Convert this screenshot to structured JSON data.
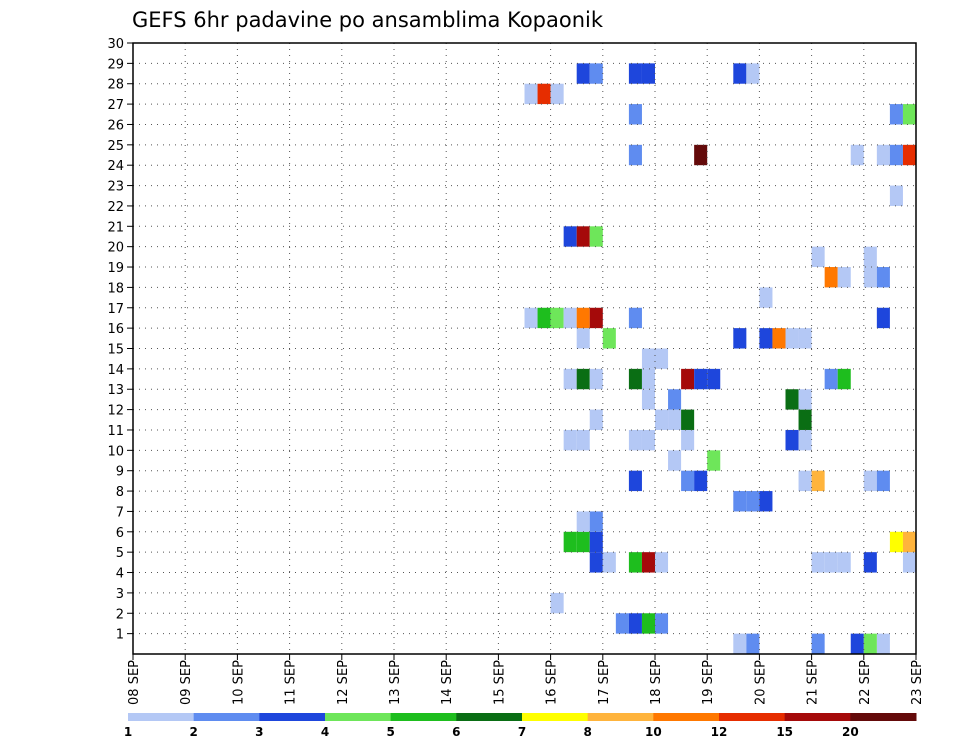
{
  "chart_data": {
    "type": "heatmap",
    "title": "GEFS 6hr padavine po ansamblima Kopaonik",
    "xlabel": "",
    "ylabel": "",
    "x_range": [
      0,
      60
    ],
    "y_range": [
      0,
      30
    ],
    "y_ticks": [
      1,
      2,
      3,
      4,
      5,
      6,
      7,
      8,
      9,
      10,
      11,
      12,
      13,
      14,
      15,
      16,
      17,
      18,
      19,
      20,
      21,
      22,
      23,
      24,
      25,
      26,
      27,
      28,
      29,
      30
    ],
    "x_tick_labels": [
      "08 SEP",
      "09 SEP",
      "10 SEP",
      "11 SEP",
      "12 SEP",
      "13 SEP",
      "14 SEP",
      "15 SEP",
      "16 SEP",
      "17 SEP",
      "18 SEP",
      "19 SEP",
      "20 SEP",
      "21 SEP",
      "22 SEP",
      "23 SEP"
    ],
    "grid": true,
    "colorbar": {
      "labels": [
        "1",
        "2",
        "3",
        "4",
        "5",
        "6",
        "7",
        "8",
        "10",
        "12",
        "15",
        "20"
      ],
      "colors": [
        "#b4c8f5",
        "#5f8cf0",
        "#1e46dc",
        "#6ee65a",
        "#1ebe1e",
        "#0a6e14",
        "#ffff00",
        "#ffb43c",
        "#ff7800",
        "#e62d00",
        "#a50a0a",
        "#640a0a"
      ]
    },
    "cells": [
      {
        "t": 52,
        "m": 0,
        "v": 2
      },
      {
        "t": 57,
        "m": 0,
        "v": 1
      },
      {
        "t": 46,
        "m": 0,
        "v": 1
      },
      {
        "t": 47,
        "m": 0,
        "v": 2
      },
      {
        "t": 55,
        "m": 0,
        "v": 3
      },
      {
        "t": 56,
        "m": 0,
        "v": 4
      },
      {
        "t": 37,
        "m": 1,
        "v": 2
      },
      {
        "t": 38,
        "m": 1,
        "v": 3
      },
      {
        "t": 39,
        "m": 1,
        "v": 5
      },
      {
        "t": 40,
        "m": 1,
        "v": 2
      },
      {
        "t": 32,
        "m": 2,
        "v": 1
      },
      {
        "t": 35,
        "m": 4,
        "v": 3
      },
      {
        "t": 36,
        "m": 4,
        "v": 1
      },
      {
        "t": 38,
        "m": 4,
        "v": 5
      },
      {
        "t": 39,
        "m": 4,
        "v": 15
      },
      {
        "t": 40,
        "m": 4,
        "v": 1
      },
      {
        "t": 52,
        "m": 4,
        "v": 1
      },
      {
        "t": 53,
        "m": 4,
        "v": 1
      },
      {
        "t": 54,
        "m": 4,
        "v": 1
      },
      {
        "t": 56,
        "m": 4,
        "v": 3
      },
      {
        "t": 59,
        "m": 4,
        "v": 1
      },
      {
        "t": 33,
        "m": 5,
        "v": 5
      },
      {
        "t": 34,
        "m": 5,
        "v": 5
      },
      {
        "t": 35,
        "m": 5,
        "v": 3
      },
      {
        "t": 58,
        "m": 5,
        "v": 7
      },
      {
        "t": 59,
        "m": 5,
        "v": 8
      },
      {
        "t": 34,
        "m": 6,
        "v": 1
      },
      {
        "t": 35,
        "m": 6,
        "v": 2
      },
      {
        "t": 46,
        "m": 7,
        "v": 2
      },
      {
        "t": 47,
        "m": 7,
        "v": 2
      },
      {
        "t": 48,
        "m": 7,
        "v": 3
      },
      {
        "t": 38,
        "m": 8,
        "v": 3
      },
      {
        "t": 42,
        "m": 8,
        "v": 2
      },
      {
        "t": 43,
        "m": 8,
        "v": 3
      },
      {
        "t": 51,
        "m": 8,
        "v": 1
      },
      {
        "t": 52,
        "m": 8,
        "v": 8
      },
      {
        "t": 56,
        "m": 8,
        "v": 1
      },
      {
        "t": 57,
        "m": 8,
        "v": 2
      },
      {
        "t": 41,
        "m": 9,
        "v": 1
      },
      {
        "t": 44,
        "m": 9,
        "v": 4
      },
      {
        "t": 33,
        "m": 10,
        "v": 1
      },
      {
        "t": 34,
        "m": 10,
        "v": 1
      },
      {
        "t": 38,
        "m": 10,
        "v": 1
      },
      {
        "t": 39,
        "m": 10,
        "v": 1
      },
      {
        "t": 42,
        "m": 10,
        "v": 1
      },
      {
        "t": 50,
        "m": 10,
        "v": 3
      },
      {
        "t": 51,
        "m": 10,
        "v": 1
      },
      {
        "t": 35,
        "m": 11,
        "v": 1
      },
      {
        "t": 40,
        "m": 11,
        "v": 1
      },
      {
        "t": 41,
        "m": 11,
        "v": 1
      },
      {
        "t": 42,
        "m": 11,
        "v": 6
      },
      {
        "t": 51,
        "m": 11,
        "v": 6
      },
      {
        "t": 39,
        "m": 12,
        "v": 1
      },
      {
        "t": 41,
        "m": 12,
        "v": 2
      },
      {
        "t": 50,
        "m": 12,
        "v": 6
      },
      {
        "t": 51,
        "m": 12,
        "v": 1
      },
      {
        "t": 33,
        "m": 13,
        "v": 1
      },
      {
        "t": 34,
        "m": 13,
        "v": 6
      },
      {
        "t": 35,
        "m": 13,
        "v": 1
      },
      {
        "t": 38,
        "m": 13,
        "v": 6
      },
      {
        "t": 39,
        "m": 13,
        "v": 1
      },
      {
        "t": 42,
        "m": 13,
        "v": 15
      },
      {
        "t": 43,
        "m": 13,
        "v": 3
      },
      {
        "t": 44,
        "m": 13,
        "v": 3
      },
      {
        "t": 53,
        "m": 13,
        "v": 2
      },
      {
        "t": 54,
        "m": 13,
        "v": 5
      },
      {
        "t": 39,
        "m": 14,
        "v": 1
      },
      {
        "t": 40,
        "m": 14,
        "v": 1
      },
      {
        "t": 34,
        "m": 15,
        "v": 1
      },
      {
        "t": 36,
        "m": 15,
        "v": 4
      },
      {
        "t": 46,
        "m": 15,
        "v": 3
      },
      {
        "t": 48,
        "m": 15,
        "v": 3
      },
      {
        "t": 49,
        "m": 15,
        "v": 10
      },
      {
        "t": 50,
        "m": 15,
        "v": 1
      },
      {
        "t": 51,
        "m": 15,
        "v": 1
      },
      {
        "t": 30,
        "m": 16,
        "v": 1
      },
      {
        "t": 31,
        "m": 16,
        "v": 5
      },
      {
        "t": 32,
        "m": 16,
        "v": 4
      },
      {
        "t": 33,
        "m": 16,
        "v": 1
      },
      {
        "t": 34,
        "m": 16,
        "v": 10
      },
      {
        "t": 35,
        "m": 16,
        "v": 15
      },
      {
        "t": 38,
        "m": 16,
        "v": 2
      },
      {
        "t": 57,
        "m": 16,
        "v": 3
      },
      {
        "t": 48,
        "m": 17,
        "v": 1
      },
      {
        "t": 53,
        "m": 18,
        "v": 10
      },
      {
        "t": 54,
        "m": 18,
        "v": 1
      },
      {
        "t": 56,
        "m": 18,
        "v": 1
      },
      {
        "t": 57,
        "m": 18,
        "v": 2
      },
      {
        "t": 52,
        "m": 19,
        "v": 1
      },
      {
        "t": 56,
        "m": 19,
        "v": 1
      },
      {
        "t": 60,
        "m": 19,
        "v": 6
      },
      {
        "t": 33,
        "m": 20,
        "v": 3
      },
      {
        "t": 34,
        "m": 20,
        "v": 15
      },
      {
        "t": 35,
        "m": 20,
        "v": 4
      },
      {
        "t": 58,
        "m": 22,
        "v": 1
      },
      {
        "t": 38,
        "m": 24,
        "v": 2
      },
      {
        "t": 43,
        "m": 24,
        "v": 20
      },
      {
        "t": 55,
        "m": 24,
        "v": 1
      },
      {
        "t": 57,
        "m": 24,
        "v": 1
      },
      {
        "t": 58,
        "m": 24,
        "v": 2
      },
      {
        "t": 59,
        "m": 24,
        "v": 12
      },
      {
        "t": 38,
        "m": 26,
        "v": 2
      },
      {
        "t": 58,
        "m": 26,
        "v": 2
      },
      {
        "t": 59,
        "m": 26,
        "v": 4
      },
      {
        "t": 30,
        "m": 27,
        "v": 1
      },
      {
        "t": 31,
        "m": 27,
        "v": 12
      },
      {
        "t": 32,
        "m": 27,
        "v": 1
      },
      {
        "t": 34,
        "m": 28,
        "v": 3
      },
      {
        "t": 35,
        "m": 28,
        "v": 2
      },
      {
        "t": 38,
        "m": 28,
        "v": 3
      },
      {
        "t": 39,
        "m": 28,
        "v": 3
      },
      {
        "t": 46,
        "m": 28,
        "v": 3
      },
      {
        "t": 47,
        "m": 28,
        "v": 1
      }
    ]
  }
}
